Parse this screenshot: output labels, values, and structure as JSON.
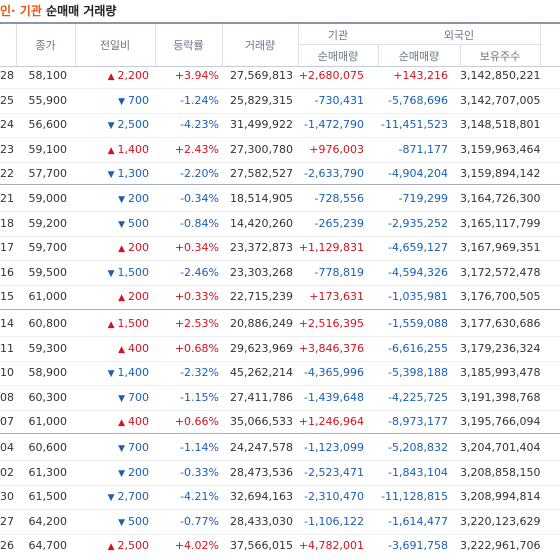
{
  "title": {
    "part1": "· 기관",
    "part2": " 순매매 거래량",
    "lead": "인"
  },
  "header": {
    "close": "종가",
    "change": "전일비",
    "rate": "등락률",
    "volume": "거래량",
    "institution": "기관",
    "foreign": "외국인",
    "inst_net": "순매매량",
    "foreign_net": "순매매량",
    "foreign_hold": "보유주수"
  },
  "colors": {
    "up": "#d2141f",
    "down": "#1a5fb4",
    "accent": "#e8560a"
  },
  "groups": [
    {
      "rows": [
        {
          "date": "28",
          "close": "58,100",
          "dir": "up",
          "change": "2,200",
          "rate": "+3.94%",
          "volume": "27,569,813",
          "inst": "+2,680,075",
          "foreign": "+143,216",
          "hold": "3,142,850,221"
        },
        {
          "date": "25",
          "close": "55,900",
          "dir": "down",
          "change": "700",
          "rate": "-1.24%",
          "volume": "25,829,315",
          "inst": "-730,431",
          "foreign": "-5,768,696",
          "hold": "3,142,707,005"
        },
        {
          "date": "24",
          "close": "56,600",
          "dir": "down",
          "change": "2,500",
          "rate": "-4.23%",
          "volume": "31,499,922",
          "inst": "-1,472,790",
          "foreign": "-11,451,523",
          "hold": "3,148,518,801"
        },
        {
          "date": "23",
          "close": "59,100",
          "dir": "up",
          "change": "1,400",
          "rate": "+2.43%",
          "volume": "27,300,780",
          "inst": "+976,003",
          "foreign": "-871,177",
          "hold": "3,159,963,464"
        },
        {
          "date": "22",
          "close": "57,700",
          "dir": "down",
          "change": "1,300",
          "rate": "-2.20%",
          "volume": "27,582,527",
          "inst": "-2,633,790",
          "foreign": "-4,904,204",
          "hold": "3,159,894,142"
        }
      ]
    },
    {
      "rows": [
        {
          "date": "21",
          "close": "59,000",
          "dir": "down",
          "change": "200",
          "rate": "-0.34%",
          "volume": "18,514,905",
          "inst": "-728,556",
          "foreign": "-719,299",
          "hold": "3,164,726,300"
        },
        {
          "date": "18",
          "close": "59,200",
          "dir": "down",
          "change": "500",
          "rate": "-0.84%",
          "volume": "14,420,260",
          "inst": "-265,239",
          "foreign": "-2,935,252",
          "hold": "3,165,117,799"
        },
        {
          "date": "17",
          "close": "59,700",
          "dir": "up",
          "change": "200",
          "rate": "+0.34%",
          "volume": "23,372,873",
          "inst": "+1,129,831",
          "foreign": "-4,659,127",
          "hold": "3,167,969,351"
        },
        {
          "date": "16",
          "close": "59,500",
          "dir": "down",
          "change": "1,500",
          "rate": "-2.46%",
          "volume": "23,303,268",
          "inst": "-778,819",
          "foreign": "-4,594,326",
          "hold": "3,172,572,478"
        },
        {
          "date": "15",
          "close": "61,000",
          "dir": "up",
          "change": "200",
          "rate": "+0.33%",
          "volume": "22,715,239",
          "inst": "+173,631",
          "foreign": "-1,035,981",
          "hold": "3,176,700,505"
        }
      ]
    },
    {
      "rows": [
        {
          "date": "14",
          "close": "60,800",
          "dir": "up",
          "change": "1,500",
          "rate": "+2.53%",
          "volume": "20,886,249",
          "inst": "+2,516,395",
          "foreign": "-1,559,088",
          "hold": "3,177,630,686"
        },
        {
          "date": "11",
          "close": "59,300",
          "dir": "up",
          "change": "400",
          "rate": "+0.68%",
          "volume": "29,623,969",
          "inst": "+3,846,376",
          "foreign": "-6,616,255",
          "hold": "3,179,236,324"
        },
        {
          "date": "10",
          "close": "58,900",
          "dir": "down",
          "change": "1,400",
          "rate": "-2.32%",
          "volume": "45,262,214",
          "inst": "-4,365,996",
          "foreign": "-5,398,188",
          "hold": "3,185,993,478"
        },
        {
          "date": "08",
          "close": "60,300",
          "dir": "down",
          "change": "700",
          "rate": "-1.15%",
          "volume": "27,411,786",
          "inst": "-1,439,648",
          "foreign": "-4,225,725",
          "hold": "3,191,398,768"
        },
        {
          "date": "07",
          "close": "61,000",
          "dir": "up",
          "change": "400",
          "rate": "+0.66%",
          "volume": "35,066,533",
          "inst": "+1,246,964",
          "foreign": "-8,973,177",
          "hold": "3,195,766,094"
        }
      ]
    },
    {
      "rows": [
        {
          "date": "04",
          "close": "60,600",
          "dir": "down",
          "change": "700",
          "rate": "-1.14%",
          "volume": "24,247,578",
          "inst": "-1,123,099",
          "foreign": "-5,208,832",
          "hold": "3,204,701,404"
        },
        {
          "date": "02",
          "close": "61,300",
          "dir": "down",
          "change": "200",
          "rate": "-0.33%",
          "volume": "28,473,536",
          "inst": "-2,523,471",
          "foreign": "-1,843,104",
          "hold": "3,208,858,150"
        },
        {
          "date": "30",
          "close": "61,500",
          "dir": "down",
          "change": "2,700",
          "rate": "-4.21%",
          "volume": "32,694,163",
          "inst": "-2,310,470",
          "foreign": "-11,128,815",
          "hold": "3,208,994,814"
        },
        {
          "date": "27",
          "close": "64,200",
          "dir": "down",
          "change": "500",
          "rate": "-0.77%",
          "volume": "28,433,030",
          "inst": "-1,106,122",
          "foreign": "-1,614,477",
          "hold": "3,220,123,629"
        },
        {
          "date": "26",
          "close": "64,700",
          "dir": "up",
          "change": "2,500",
          "rate": "+4.02%",
          "volume": "37,566,015",
          "inst": "+4,782,001",
          "foreign": "-3,691,758",
          "hold": "3,222,961,706"
        }
      ]
    }
  ]
}
